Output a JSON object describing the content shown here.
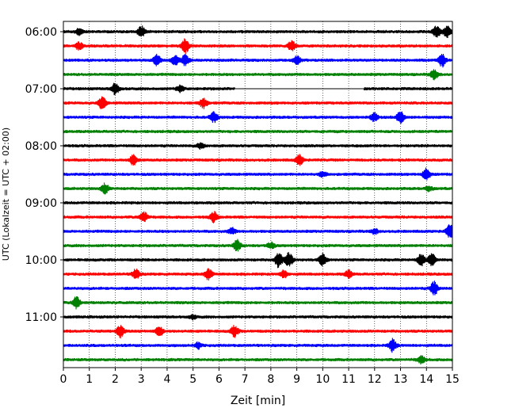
{
  "chart_data": {
    "type": "line",
    "title": "",
    "xlabel": "Zeit  [min]",
    "ylabel": "UTC (Lokalzeit = UTC + 02:00)",
    "xlim": [
      0,
      15
    ],
    "x_ticks": [
      "0",
      "1",
      "2",
      "3",
      "4",
      "5",
      "6",
      "7",
      "8",
      "9",
      "10",
      "11",
      "12",
      "13",
      "14",
      "15"
    ],
    "y_ticks": [
      {
        "label": "06:00",
        "row": 0
      },
      {
        "label": "07:00",
        "row": 4
      },
      {
        "label": "08:00",
        "row": 8
      },
      {
        "label": "09:00",
        "row": 12
      },
      {
        "label": "10:00",
        "row": 16
      },
      {
        "label": "11:00",
        "row": 20
      }
    ],
    "grid_x": true,
    "colors": [
      "#000000",
      "#ff0000",
      "#0000ff",
      "#008000"
    ],
    "traces": [
      {
        "start": "06:00",
        "color": "#000000",
        "events": [
          {
            "t": 0.6,
            "a": 0.5
          },
          {
            "t": 3.0,
            "a": 0.9
          },
          {
            "t": 14.4,
            "a": 1.0
          },
          {
            "t": 14.8,
            "a": 0.9
          }
        ]
      },
      {
        "start": "06:15",
        "color": "#ff0000",
        "events": [
          {
            "t": 0.6,
            "a": 0.6
          },
          {
            "t": 4.7,
            "a": 1.1
          },
          {
            "t": 8.8,
            "a": 0.8
          }
        ]
      },
      {
        "start": "06:30",
        "color": "#0000ff",
        "events": [
          {
            "t": 3.6,
            "a": 0.9
          },
          {
            "t": 4.3,
            "a": 0.8
          },
          {
            "t": 4.7,
            "a": 0.9
          },
          {
            "t": 9.0,
            "a": 0.7
          },
          {
            "t": 14.6,
            "a": 1.0
          }
        ]
      },
      {
        "start": "06:45",
        "color": "#008000",
        "events": [
          {
            "t": 14.3,
            "a": 0.8
          }
        ]
      },
      {
        "start": "07:00",
        "color": "#000000",
        "gap": [
          6.6,
          11.6
        ],
        "events": [
          {
            "t": 2.0,
            "a": 0.9
          },
          {
            "t": 4.5,
            "a": 0.5
          }
        ]
      },
      {
        "start": "07:15",
        "color": "#ff0000",
        "events": [
          {
            "t": 1.5,
            "a": 1.0
          },
          {
            "t": 5.4,
            "a": 0.8
          }
        ]
      },
      {
        "start": "07:30",
        "color": "#0000ff",
        "events": [
          {
            "t": 5.8,
            "a": 0.8
          },
          {
            "t": 12.0,
            "a": 0.7
          },
          {
            "t": 13.0,
            "a": 1.0
          }
        ]
      },
      {
        "start": "07:45",
        "color": "#008000",
        "events": []
      },
      {
        "start": "08:00",
        "color": "#000000",
        "events": [
          {
            "t": 5.3,
            "a": 0.5
          }
        ]
      },
      {
        "start": "08:15",
        "color": "#ff0000",
        "events": [
          {
            "t": 2.7,
            "a": 0.8
          },
          {
            "t": 9.1,
            "a": 0.8
          }
        ]
      },
      {
        "start": "08:30",
        "color": "#0000ff",
        "events": [
          {
            "t": 10.0,
            "a": 0.4
          },
          {
            "t": 14.0,
            "a": 1.0
          }
        ]
      },
      {
        "start": "08:45",
        "color": "#008000",
        "events": [
          {
            "t": 1.6,
            "a": 0.8
          },
          {
            "t": 14.1,
            "a": 0.4
          }
        ]
      },
      {
        "start": "09:00",
        "color": "#000000",
        "events": []
      },
      {
        "start": "09:15",
        "color": "#ff0000",
        "events": [
          {
            "t": 3.1,
            "a": 0.9
          },
          {
            "t": 5.8,
            "a": 0.8
          }
        ]
      },
      {
        "start": "09:30",
        "color": "#0000ff",
        "events": [
          {
            "t": 6.5,
            "a": 0.5
          },
          {
            "t": 12.0,
            "a": 0.4
          },
          {
            "t": 14.9,
            "a": 1.1
          }
        ]
      },
      {
        "start": "09:45",
        "color": "#008000",
        "events": [
          {
            "t": 6.7,
            "a": 0.9
          },
          {
            "t": 8.0,
            "a": 0.5
          }
        ]
      },
      {
        "start": "10:00",
        "color": "#000000",
        "events": [
          {
            "t": 8.3,
            "a": 1.2
          },
          {
            "t": 8.7,
            "a": 1.2
          },
          {
            "t": 10.0,
            "a": 1.0
          },
          {
            "t": 13.8,
            "a": 1.0
          },
          {
            "t": 14.2,
            "a": 1.0
          }
        ]
      },
      {
        "start": "10:15",
        "color": "#ff0000",
        "events": [
          {
            "t": 2.8,
            "a": 0.8
          },
          {
            "t": 5.6,
            "a": 0.9
          },
          {
            "t": 8.5,
            "a": 0.6
          },
          {
            "t": 11.0,
            "a": 0.6
          }
        ]
      },
      {
        "start": "10:30",
        "color": "#0000ff",
        "events": [
          {
            "t": 14.3,
            "a": 1.1
          }
        ]
      },
      {
        "start": "10:45",
        "color": "#008000",
        "events": [
          {
            "t": 0.5,
            "a": 1.0
          }
        ]
      },
      {
        "start": "11:00",
        "color": "#000000",
        "events": [
          {
            "t": 5.0,
            "a": 0.3
          }
        ]
      },
      {
        "start": "11:15",
        "color": "#ff0000",
        "events": [
          {
            "t": 2.2,
            "a": 1.0
          },
          {
            "t": 3.7,
            "a": 0.8
          },
          {
            "t": 6.6,
            "a": 0.9
          }
        ]
      },
      {
        "start": "11:30",
        "color": "#0000ff",
        "events": [
          {
            "t": 5.2,
            "a": 0.5
          },
          {
            "t": 12.7,
            "a": 1.0
          }
        ]
      },
      {
        "start": "11:45",
        "color": "#008000",
        "events": [
          {
            "t": 13.8,
            "a": 0.6
          }
        ]
      }
    ]
  }
}
